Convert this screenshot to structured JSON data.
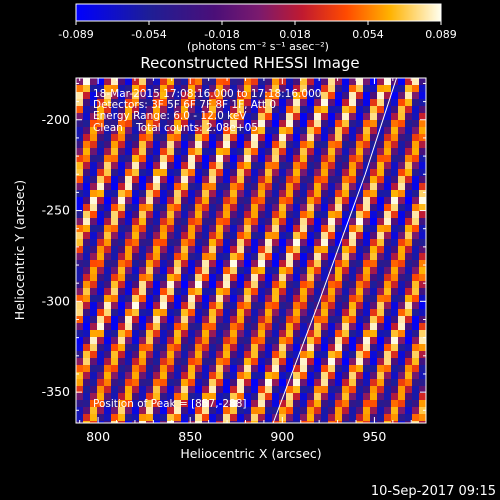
{
  "colorbar": {
    "ticks": [
      "-0.089",
      "-0.054",
      "-0.018",
      "0.018",
      "0.054",
      "0.089"
    ],
    "unit_label": "(photons cm⁻² s⁻¹ asec⁻²)",
    "range": [
      -0.089,
      0.089
    ]
  },
  "chart_data": {
    "type": "heatmap",
    "title": "Reconstructed RHESSI Image",
    "xlabel": "Heliocentric X (arcsec)",
    "ylabel": "Heliocentric Y (arcsec)",
    "xlim": [
      788,
      978
    ],
    "ylim": [
      -367,
      -177
    ],
    "xticks": [
      800,
      850,
      900,
      950
    ],
    "yticks": [
      -200,
      -250,
      -300,
      -350
    ],
    "xtick_labels": [
      "800",
      "850",
      "900",
      "950"
    ],
    "ytick_labels": [
      "-200",
      "-250",
      "-300",
      "-350"
    ],
    "annotations": [
      "18-Mar-2015 17:08:16.000 to 17:18:16.000",
      "Detectors: 3F 5F 6F 7F 8F 1F, Att 0",
      "Energy Range: 6.0 - 12.0 keV",
      "Clean    Total counts: 2.08e+05"
    ],
    "peak_label": "Position of Peak = [857,-288]",
    "limb_curve": [
      [
        895,
        -367
      ],
      [
        920,
        -300
      ],
      [
        945,
        -230
      ],
      [
        962,
        -177
      ]
    ],
    "grid": false
  },
  "footer": {
    "timestamp": "10-Sep-2017 09:15"
  }
}
